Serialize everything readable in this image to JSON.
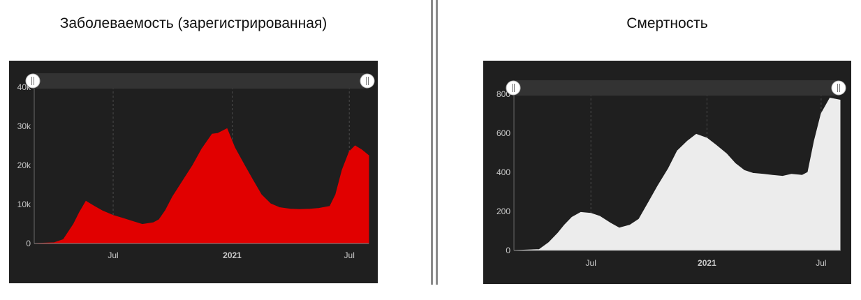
{
  "left_title": "Заболеваемость (зарегистрированная)",
  "right_title": "Смертность",
  "colors": {
    "panel_bg": "#1f1f1f",
    "left_fill": "#e10000",
    "right_fill": "#ececec",
    "axis_text": "#c8c8c8",
    "slider_track": "#333333",
    "handle": "#ffffff"
  },
  "chart_data": [
    {
      "type": "area",
      "title": "Заболеваемость (зарегистрированная)",
      "xlabel": "",
      "ylabel": "",
      "x_tick_labels": [
        "Jul",
        "2021",
        "Jul"
      ],
      "y_tick_labels": [
        "0",
        "10k",
        "20k",
        "30k",
        "40k"
      ],
      "ylim": [
        0,
        40000
      ],
      "xlim": [
        "2020-03-01",
        "2021-07-31"
      ],
      "grid": true,
      "series": [
        {
          "x": [
            "2020-03-01",
            "2020-04-01",
            "2020-04-15",
            "2020-05-01",
            "2020-05-10",
            "2020-05-20",
            "2020-06-01",
            "2020-06-15",
            "2020-07-01",
            "2020-07-15",
            "2020-08-01",
            "2020-08-15",
            "2020-09-01",
            "2020-09-10",
            "2020-09-20",
            "2020-10-01",
            "2020-10-15",
            "2020-11-01",
            "2020-11-15",
            "2020-12-01",
            "2020-12-10",
            "2020-12-24",
            "2021-01-05",
            "2021-01-20",
            "2021-02-01",
            "2021-02-15",
            "2021-03-01",
            "2021-03-15",
            "2021-04-01",
            "2021-04-15",
            "2021-05-01",
            "2021-05-15",
            "2021-06-01",
            "2021-06-10",
            "2021-06-20",
            "2021-07-01",
            "2021-07-10",
            "2021-07-20",
            "2021-07-31"
          ],
          "values": [
            0,
            200,
            1000,
            5000,
            8000,
            10800,
            9600,
            8300,
            7200,
            6500,
            5600,
            4900,
            5300,
            6100,
            8500,
            12000,
            15600,
            20000,
            24200,
            28000,
            28200,
            29400,
            24500,
            20000,
            16500,
            12500,
            10200,
            9200,
            8800,
            8700,
            8800,
            9000,
            9500,
            12500,
            18800,
            23500,
            25000,
            24000,
            22500
          ]
        }
      ]
    },
    {
      "type": "area",
      "title": "Смертность",
      "xlabel": "",
      "ylabel": "",
      "x_tick_labels": [
        "Jul",
        "2021",
        "Jul"
      ],
      "y_tick_labels": [
        "0",
        "200",
        "400",
        "600",
        "800"
      ],
      "ylim": [
        0,
        800
      ],
      "xlim": [
        "2020-03-01",
        "2021-07-31"
      ],
      "grid": true,
      "series": [
        {
          "x": [
            "2020-03-01",
            "2020-04-10",
            "2020-04-25",
            "2020-05-10",
            "2020-05-20",
            "2020-06-01",
            "2020-06-15",
            "2020-07-01",
            "2020-07-15",
            "2020-08-01",
            "2020-08-15",
            "2020-09-01",
            "2020-09-15",
            "2020-10-01",
            "2020-10-15",
            "2020-11-01",
            "2020-11-15",
            "2020-12-01",
            "2020-12-15",
            "2021-01-01",
            "2021-01-15",
            "2021-02-01",
            "2021-02-15",
            "2021-03-01",
            "2021-03-15",
            "2021-04-01",
            "2021-04-15",
            "2021-05-01",
            "2021-05-15",
            "2021-06-01",
            "2021-06-10",
            "2021-06-20",
            "2021-07-01",
            "2021-07-15",
            "2021-07-31"
          ],
          "values": [
            0,
            5,
            40,
            90,
            130,
            170,
            195,
            190,
            175,
            140,
            115,
            130,
            160,
            250,
            330,
            420,
            510,
            560,
            595,
            575,
            540,
            495,
            445,
            410,
            395,
            390,
            385,
            380,
            390,
            385,
            400,
            560,
            700,
            780,
            770
          ]
        }
      ]
    }
  ]
}
